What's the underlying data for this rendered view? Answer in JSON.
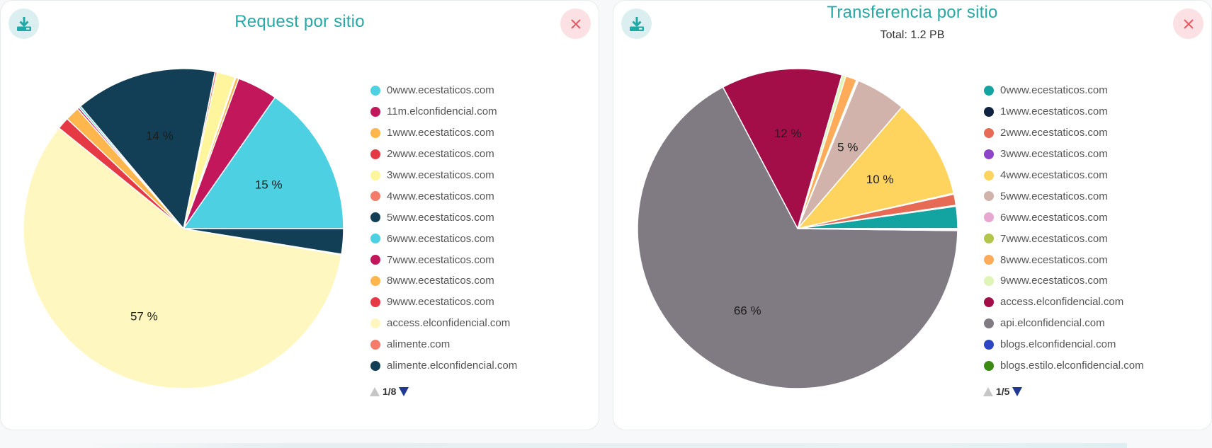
{
  "chart_data": [
    {
      "type": "pie",
      "title": "Request por sitio",
      "subtitle": "",
      "legend_position": "right",
      "slices": [
        {
          "name": "0www.ecestaticos.com",
          "value": 15,
          "color": "#4dd0e1",
          "label": "15 %"
        },
        {
          "name": "11m.elconfidencial.com",
          "value": 4,
          "color": "#c2185b",
          "label": ""
        },
        {
          "name": "1www.ecestaticos.com",
          "value": 0.3,
          "color": "#ffb74d",
          "label": ""
        },
        {
          "name": "2www.ecestaticos.com",
          "value": 0.1,
          "color": "#e53945",
          "label": ""
        },
        {
          "name": "3www.ecestaticos.com",
          "value": 1.8,
          "color": "#fff59d",
          "label": ""
        },
        {
          "name": "4www.ecestaticos.com",
          "value": 0.2,
          "color": "#f47c6a",
          "label": ""
        },
        {
          "name": "5www.ecestaticos.com",
          "value": 14,
          "color": "#123f56",
          "label": "14 %"
        },
        {
          "name": "6www.ecestaticos.com",
          "value": 0.2,
          "color": "#4dd0e1",
          "label": ""
        },
        {
          "name": "7www.ecestaticos.com",
          "value": 0.2,
          "color": "#c2185b",
          "label": ""
        },
        {
          "name": "8www.ecestaticos.com",
          "value": 1.4,
          "color": "#ffb74d",
          "label": ""
        },
        {
          "name": "9www.ecestaticos.com",
          "value": 1.2,
          "color": "#e53945",
          "label": ""
        },
        {
          "name": "access.elconfidencial.com",
          "value": 57,
          "color": "#fff7bf",
          "label": "57 %"
        },
        {
          "name": "alimente.com",
          "value": 0.1,
          "color": "#f47c6a",
          "label": ""
        },
        {
          "name": "alimente.elconfidencial.com",
          "value": 2.5,
          "color": "#123f56",
          "label": ""
        }
      ],
      "pager": "1/8"
    },
    {
      "type": "pie",
      "title": "Transferencia por sitio",
      "subtitle": "Total: 1.2 PB",
      "legend_position": "right",
      "slices": [
        {
          "name": "0www.ecestaticos.com",
          "value": 2.2,
          "color": "#13a3a0",
          "label": ""
        },
        {
          "name": "1www.ecestaticos.com",
          "value": 0.1,
          "color": "#0f2340",
          "label": ""
        },
        {
          "name": "2www.ecestaticos.com",
          "value": 1.1,
          "color": "#e76a55",
          "label": ""
        },
        {
          "name": "3www.ecestaticos.com",
          "value": 0.1,
          "color": "#8e44c7",
          "label": ""
        },
        {
          "name": "4www.ecestaticos.com",
          "value": 10,
          "color": "#ffd45e",
          "label": "10 %"
        },
        {
          "name": "5www.ecestaticos.com",
          "value": 5,
          "color": "#d1b3ab",
          "label": "5 %"
        },
        {
          "name": "6www.ecestaticos.com",
          "value": 0.1,
          "color": "#e8a7d1",
          "label": ""
        },
        {
          "name": "7www.ecestaticos.com",
          "value": 0.1,
          "color": "#b4c64a",
          "label": ""
        },
        {
          "name": "8www.ecestaticos.com",
          "value": 1.1,
          "color": "#ffab5a",
          "label": ""
        },
        {
          "name": "9www.ecestaticos.com",
          "value": 0.4,
          "color": "#dff5b8",
          "label": ""
        },
        {
          "name": "access.elconfidencial.com",
          "value": 12,
          "color": "#a30d48",
          "label": "12 %"
        },
        {
          "name": "api.elconfidencial.com",
          "value": 66,
          "color": "#807a82",
          "label": "66 %"
        },
        {
          "name": "blogs.elconfidencial.com",
          "value": 0.1,
          "color": "#2e46c2",
          "label": ""
        },
        {
          "name": "blogs.estilo.elconfidencial.com",
          "value": 0.1,
          "color": "#3b8a14",
          "label": ""
        }
      ],
      "pager": "1/5"
    }
  ],
  "icons": {
    "download": "download-icon",
    "close": "close-icon",
    "accent": "#26a9a6",
    "close_color": "#e45a63"
  }
}
